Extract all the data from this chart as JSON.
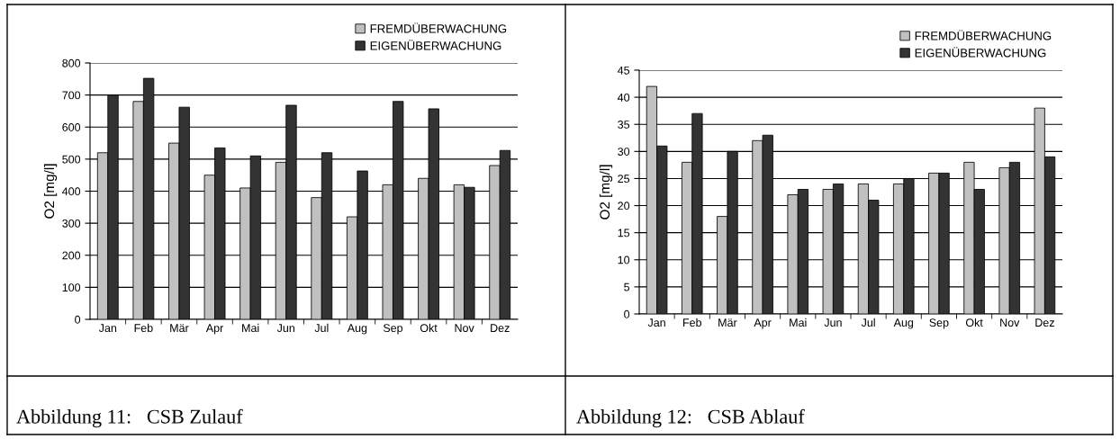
{
  "chart_data": [
    {
      "type": "bar",
      "title": "Abbildung 11:   CSB Zulauf",
      "ylabel": "O2 [mg/l]",
      "categories": [
        "Jan",
        "Feb",
        "Mär",
        "Apr",
        "Mai",
        "Jun",
        "Jul",
        "Aug",
        "Sep",
        "Okt",
        "Nov",
        "Dez"
      ],
      "series": [
        {
          "name": "FREMDÜBERWACHUNG",
          "color": "#c0c0c0",
          "values": [
            520,
            680,
            550,
            450,
            410,
            490,
            380,
            320,
            420,
            440,
            420,
            480
          ]
        },
        {
          "name": "EIGENÜBERWACHUNG",
          "color": "#333333",
          "values": [
            700,
            752,
            662,
            535,
            510,
            668,
            520,
            463,
            680,
            657,
            412,
            527
          ]
        }
      ],
      "ylim": [
        0,
        800
      ],
      "yticks": [
        0,
        100,
        200,
        300,
        400,
        500,
        600,
        700,
        800
      ],
      "grid": "y",
      "legend": "top right"
    },
    {
      "type": "bar",
      "title": "Abbildung 12:   CSB Ablauf",
      "ylabel": "O2 [mg/l]",
      "categories": [
        "Jan",
        "Feb",
        "Mär",
        "Apr",
        "Mai",
        "Jun",
        "Jul",
        "Aug",
        "Sep",
        "Okt",
        "Nov",
        "Dez"
      ],
      "series": [
        {
          "name": "FREMDÜBERWACHUNG",
          "color": "#c0c0c0",
          "values": [
            42,
            28,
            18,
            32,
            22,
            23,
            24,
            24,
            26,
            28,
            27,
            38
          ]
        },
        {
          "name": "EIGENÜBERWACHUNG",
          "color": "#333333",
          "values": [
            31,
            37,
            30,
            33,
            23,
            24,
            21,
            25,
            26,
            23,
            28,
            29
          ]
        }
      ],
      "ylim": [
        0,
        45
      ],
      "yticks": [
        0,
        5,
        10,
        15,
        20,
        25,
        30,
        35,
        40,
        45
      ],
      "grid": "y",
      "legend": "top right"
    }
  ]
}
